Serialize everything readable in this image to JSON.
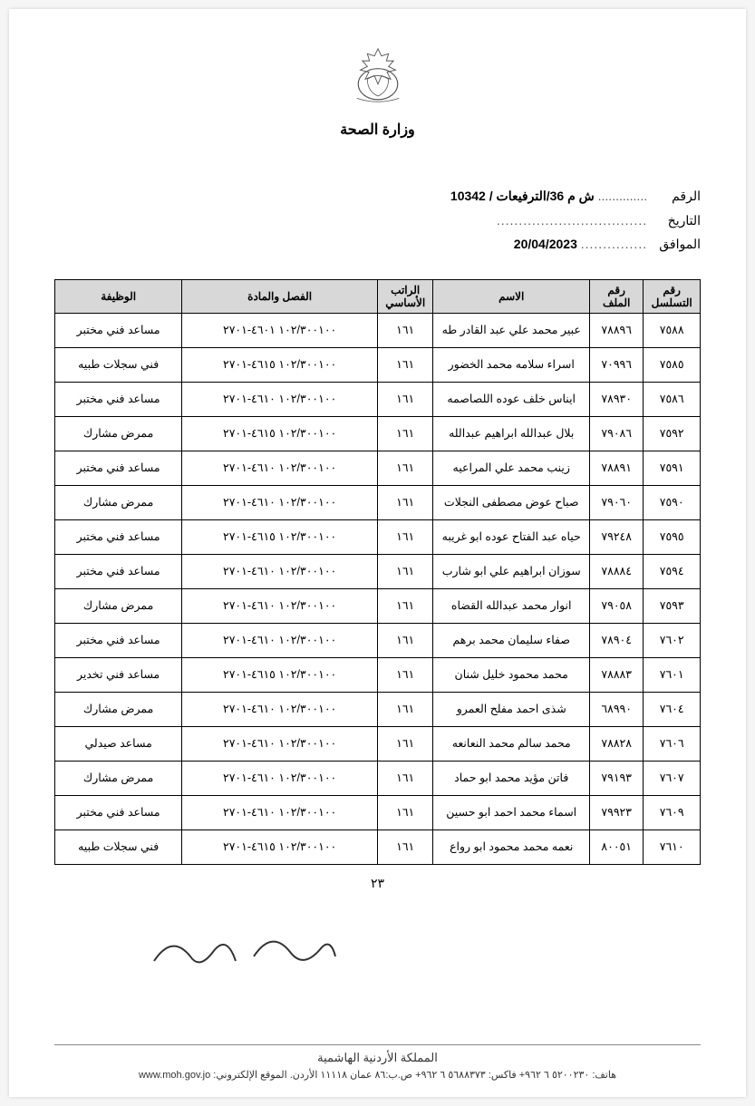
{
  "ministry_name": "وزارة الصحة",
  "meta": {
    "number_label": "الرقم",
    "number_value": "ش م 36/الترفيعات / 10342",
    "date_label": "التاريخ",
    "date_value": "",
    "corresponding_label": "الموافق",
    "corresponding_value": "20/04/2023"
  },
  "columns": {
    "serial": "رقم التسلسل",
    "file": "رقم الملف",
    "name": "الاسم",
    "basic_salary": "الراتب الأساسي",
    "chapter_item": "الفصل والمادة",
    "job": "الوظيفة"
  },
  "rows": [
    {
      "serial": "٧٥٨٨",
      "file": "٧٨٨٩٦",
      "name": "عبير محمد علي عبد القادر طه",
      "salary": "١٦١",
      "chapter": "١٠٢/٣٠٠١٠٠ ٤٦٠١-٢٧٠١",
      "job": "مساعد فني مختبر"
    },
    {
      "serial": "٧٥٨٥",
      "file": "٧٠٩٩٦",
      "name": "اسراء سلامه محمد الخضور",
      "salary": "١٦١",
      "chapter": "١٠٢/٣٠٠١٠٠ ٤٦١٥-٢٧٠١",
      "job": "فني سجلات طبيه"
    },
    {
      "serial": "٧٥٨٦",
      "file": "٧٨٩٣٠",
      "name": "ايناس خلف عوده اللصاصمه",
      "salary": "١٦١",
      "chapter": "١٠٢/٣٠٠١٠٠ ٤٦١٠-٢٧٠١",
      "job": "مساعد فني مختبر"
    },
    {
      "serial": "٧٥٩٢",
      "file": "٧٩٠٨٦",
      "name": "بلال عبدالله ابراهيم عبدالله",
      "salary": "١٦١",
      "chapter": "١٠٢/٣٠٠١٠٠ ٤٦١٥-٢٧٠١",
      "job": "ممرض مشارك"
    },
    {
      "serial": "٧٥٩١",
      "file": "٧٨٨٩١",
      "name": "زينب محمد علي المراعيه",
      "salary": "١٦١",
      "chapter": "١٠٢/٣٠٠١٠٠ ٤٦١٠-٢٧٠١",
      "job": "مساعد فني مختبر"
    },
    {
      "serial": "٧٥٩٠",
      "file": "٧٩٠٦٠",
      "name": "صباح عوض مصطفى النجلات",
      "salary": "١٦١",
      "chapter": "١٠٢/٣٠٠١٠٠ ٤٦١٠-٢٧٠١",
      "job": "ممرض مشارك"
    },
    {
      "serial": "٧٥٩٥",
      "file": "٧٩٢٤٨",
      "name": "حياه عبد الفتاح عوده ابو غريبه",
      "salary": "١٦١",
      "chapter": "١٠٢/٣٠٠١٠٠ ٤٦١٥-٢٧٠١",
      "job": "مساعد فني مختبر"
    },
    {
      "serial": "٧٥٩٤",
      "file": "٧٨٨٨٤",
      "name": "سوزان ابراهيم علي ابو شارب",
      "salary": "١٦١",
      "chapter": "١٠٢/٣٠٠١٠٠ ٤٦١٠-٢٧٠١",
      "job": "مساعد فني مختبر"
    },
    {
      "serial": "٧٥٩٣",
      "file": "٧٩٠٥٨",
      "name": "انوار محمد عبدالله القضاه",
      "salary": "١٦١",
      "chapter": "١٠٢/٣٠٠١٠٠ ٤٦١٠-٢٧٠١",
      "job": "ممرض مشارك"
    },
    {
      "serial": "٧٦٠٢",
      "file": "٧٨٩٠٤",
      "name": "صفاء سليمان محمد برهم",
      "salary": "١٦١",
      "chapter": "١٠٢/٣٠٠١٠٠ ٤٦١٠-٢٧٠١",
      "job": "مساعد فني مختبر"
    },
    {
      "serial": "٧٦٠١",
      "file": "٧٨٨٨٣",
      "name": "محمد محمود خليل شنان",
      "salary": "١٦١",
      "chapter": "١٠٢/٣٠٠١٠٠ ٤٦١٥-٢٧٠١",
      "job": "مساعد فني تخدير"
    },
    {
      "serial": "٧٦٠٤",
      "file": "٦٨٩٩٠",
      "name": "شذى احمد مفلح العمرو",
      "salary": "١٦١",
      "chapter": "١٠٢/٣٠٠١٠٠ ٤٦١٠-٢٧٠١",
      "job": "ممرض مشارك"
    },
    {
      "serial": "٧٦٠٦",
      "file": "٧٨٨٢٨",
      "name": "محمد سالم محمد النعانعه",
      "salary": "١٦١",
      "chapter": "١٠٢/٣٠٠١٠٠ ٤٦١٠-٢٧٠١",
      "job": "مساعد صيدلي"
    },
    {
      "serial": "٧٦٠٧",
      "file": "٧٩١٩٣",
      "name": "فاتن مؤيد محمد ابو حماد",
      "salary": "١٦١",
      "chapter": "١٠٢/٣٠٠١٠٠ ٤٦١٠-٢٧٠١",
      "job": "ممرض مشارك"
    },
    {
      "serial": "٧٦٠٩",
      "file": "٧٩٩٢٣",
      "name": "اسماء محمد احمد ابو حسين",
      "salary": "١٦١",
      "chapter": "١٠٢/٣٠٠١٠٠ ٤٦١٠-٢٧٠١",
      "job": "مساعد فني مختبر"
    },
    {
      "serial": "٧٦١٠",
      "file": "٨٠٠٥١",
      "name": "نعمه محمد محمود ابو رواع",
      "salary": "١٦١",
      "chapter": "١٠٢/٣٠٠١٠٠ ٤٦١٥-٢٧٠١",
      "job": "فني سجلات طبيه"
    }
  ],
  "page_number": "٢٣",
  "footer": {
    "kingdom": "المملكة الأردنية الهاشمية",
    "contact": "هاتف: ٥٢٠٠٢٣٠ ٦ ٩٦٢+ فاكس: ٥٦٨٨٣٧٣ ٦ ٩٦٢+ ص.ب:٨٦ عمان ١١١١٨ الأردن. الموقع الإلكتروني: www.moh.gov.jo"
  }
}
